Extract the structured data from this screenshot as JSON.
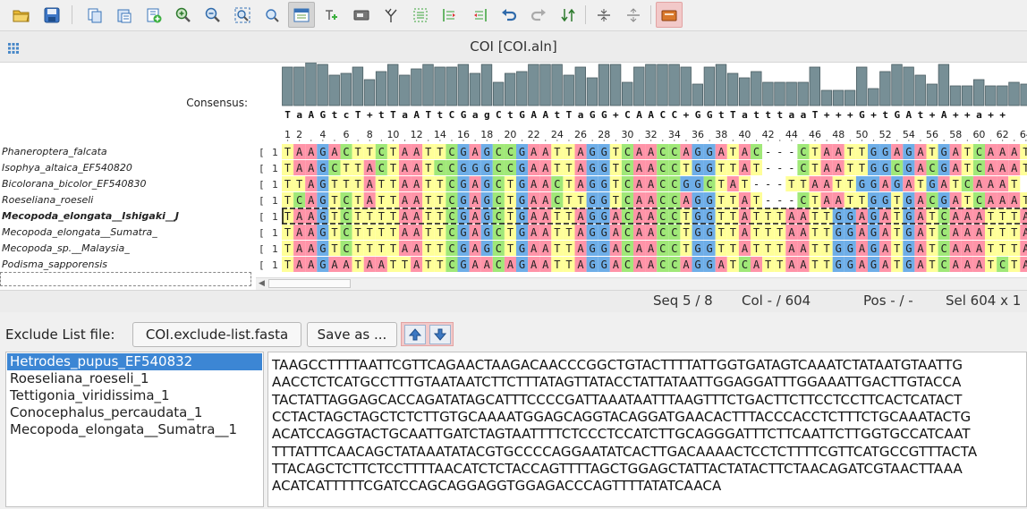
{
  "toolbar": {
    "buttons": [
      {
        "icon": "open-folder-icon"
      },
      {
        "icon": "save-disk-icon"
      },
      {
        "icon": "copy-sequences-icon"
      },
      {
        "icon": "paste-sequences-icon"
      },
      {
        "icon": "add-sequences-icon"
      },
      {
        "icon": "zoom-in-icon"
      },
      {
        "icon": "zoom-out-icon"
      },
      {
        "icon": "zoom-fit-icon"
      },
      {
        "icon": "find-icon"
      },
      {
        "icon": "view-mode-icon",
        "active": true
      },
      {
        "icon": "add-annotation-icon"
      },
      {
        "icon": "rename-icon"
      },
      {
        "icon": "tree-icon"
      },
      {
        "icon": "select-columns-icon"
      },
      {
        "icon": "align-left-icon"
      },
      {
        "icon": "align-right-icon"
      },
      {
        "icon": "undo-icon"
      },
      {
        "icon": "redo-icon"
      },
      {
        "icon": "sort-icon"
      },
      {
        "icon": "collapse-gaps-icon"
      },
      {
        "icon": "expand-gaps-icon"
      },
      {
        "icon": "exclude-list-icon",
        "highlighted": true
      }
    ]
  },
  "window": {
    "menu_icon": "grid-menu-icon",
    "title": "COI [COI.aln]"
  },
  "alignment": {
    "consensus_label": "Consensus:",
    "consensus": "TaAGtcT+tTaATtCGagCtGAAtTaGG+CAACC+GGtTatttaaT+++G+tGAt+A++a++",
    "ruler": [
      "1",
      "2",
      "4",
      "6",
      "8",
      "10",
      "12",
      "14",
      "16",
      "18",
      "20",
      "22",
      "24",
      "26",
      "28",
      "30",
      "32",
      "34",
      "36",
      "38",
      "40",
      "42",
      "44",
      "46",
      "48",
      "50",
      "52",
      "54",
      "56",
      "58",
      "60",
      "62",
      "64"
    ],
    "row_marker": "[",
    "rows": [
      {
        "name": "Phaneroptera_falcata",
        "seq": "TAAGACTTCTAATTCGAGCCGAATTAGGTCAACCAGGATAC---CTAATTGGAGATGATCAAAT"
      },
      {
        "name": "Isophya_altaica_EF540820",
        "seq": "TAAGCTTACTAATCCGGGCCGAATTAGGTCAACCTGGTTAT---CTAATTGGCGACGATCAAAT"
      },
      {
        "name": "Bicolorana_bicolor_EF540830",
        "seq": "TTAGTTTATTAATTCGAGCTGAACTAGGTCAACCGGCTAT---TTAATTGGAGATGATCAAAT"
      },
      {
        "name": "Roeseliana_roeseli",
        "seq": "TCAGTCTATTAATTCGAGCTGAACTTGGTCAACCAGGTTAT---CTAATTGGTGACGATCAAAT"
      },
      {
        "name": "Mecopoda_elongata__Ishigaki__J",
        "seq": "TAAGTCTTTTAATTCGAGCTGAATTAGGACAACCTGGTTATTTAATTGGAGATGATCAAATTTA",
        "selected": true
      },
      {
        "name": "Mecopoda_elongata__Sumatra_",
        "seq": "TAAGTCTTTTAATTCGAGCTGAATTAGGACAACCTGGTTATTTAATTGGAGATGATCAAATTTA"
      },
      {
        "name": "Mecopoda_sp.__Malaysia_",
        "seq": "TAAGTCTTTTAATTCGAGCTGAATTAGGACAACCTGGTTATTTAATTGGAGATGATCAAATTTA"
      },
      {
        "name": "Podisma_sapporensis",
        "seq": "TAAGAATAATTATTCGAACAGAATTAGGACAACCAGGATCATTAATTGGAGATGATCAAATCTA"
      }
    ],
    "colors": {
      "A": "#ff94a8",
      "T": "#ffff99",
      "C": "#a0e878",
      "G": "#6eaee8",
      "-": "#ffffff"
    },
    "conservation": [
      0.9,
      0.9,
      1.0,
      0.95,
      0.7,
      0.75,
      0.9,
      0.6,
      0.8,
      0.95,
      0.7,
      0.85,
      0.95,
      0.9,
      0.9,
      0.95,
      0.75,
      0.95,
      0.55,
      0.75,
      0.8,
      0.95,
      0.95,
      0.95,
      0.7,
      0.9,
      0.65,
      0.95,
      0.95,
      0.55,
      0.9,
      0.95,
      0.95,
      0.95,
      0.9,
      0.5,
      0.9,
      0.95,
      0.75,
      0.65,
      0.8,
      0.55,
      0.55,
      0.55,
      0.55,
      0.9,
      0.35,
      0.35,
      0.35,
      0.9,
      0.4,
      0.8,
      0.95,
      0.9,
      0.7,
      0.5,
      0.95,
      0.45,
      0.45,
      0.6,
      0.45,
      0.45,
      0.55,
      0.5
    ]
  },
  "status": {
    "seq": "Seq 5 / 8",
    "col": "Col - / 604",
    "pos": "Pos - / -",
    "sel": "Sel 604 x 1"
  },
  "exclude": {
    "label": "Exclude List file:",
    "file_button": "COI.exclude-list.fasta",
    "save_button": "Save as ...",
    "up_icon": "arrow-up-icon",
    "down_icon": "arrow-down-icon",
    "items": [
      "Hetrodes_pupus_EF540832",
      "Roeseliana_roeseli_1",
      "Tettigonia_viridissima_1",
      "Conocephalus_percaudata_1",
      "Mecopoda_elongata__Sumatra__1"
    ],
    "selected_index": 0,
    "sequence_lines": [
      "TAAGCCTTTTAATTCGTTCAGAACTAAGACAACCCGGCTGTACTTTTATTGGTGATAGTCAAATCTATAATGTAATTG",
      "AACCTCTCATGCCTTTGTAATAATCTTCTTTATAGTTATACCTATTATAATTGGAGGATTTGGAAATTGACTTGTACCA",
      "TACTATTAGGAGCACCAGATATAGCATTTCCCCGATTAAATAATTTAAGTTTCTGACTTCTTCCTCCTTCACTCATACT",
      "CCTACTAGCTAGCTCTCTTGTGCAAAATGGAGCAGGTACAGGATGAACACTTTACCCACCTCTTTCTGCAAATACTG",
      "ACATCCAGGTACTGCAATTGATCTAGTAATTTTCTCCCTCCATCTTGCAGGGATTTCTTCAATTCTTGGTGCCATCAAT",
      "TTTATTTCAACAGCTATAAATATACGTGCCCCAGGAATATCACTTGACAAAACTCCTCTTTTCGTTCATGCCGTTTACTA",
      "TTACAGCTCTTCTCCTTTTAACATCTCTACCAGTTTTAGCTGGAGCTATTACTATACTTCTAACAGATCGTAACTTAAA",
      "ACATCATTTTTCGATCCAGCAGGAGGTGGAGACCCAGTTTTATATCAACA"
    ]
  }
}
